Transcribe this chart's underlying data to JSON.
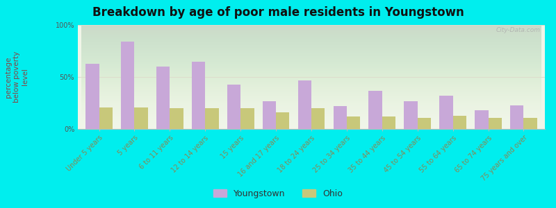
{
  "title": "Breakdown by age of poor male residents in Youngstown",
  "ylabel_lines": [
    "percentage",
    "below poverty",
    "level"
  ],
  "categories": [
    "Under 5 years",
    "5 years",
    "6 to 11 years",
    "12 to 14 years",
    "15 years",
    "16 and 17 years",
    "18 to 24 years",
    "25 to 34 years",
    "35 to 44 years",
    "45 to 54 years",
    "55 to 64 years",
    "65 to 74 years",
    "75 years and over"
  ],
  "youngstown_values": [
    63,
    84,
    60,
    65,
    43,
    27,
    47,
    22,
    37,
    27,
    32,
    18,
    23
  ],
  "ohio_values": [
    21,
    21,
    20,
    20,
    20,
    16,
    20,
    12,
    12,
    11,
    13,
    11,
    11
  ],
  "youngstown_color": "#c8a8d8",
  "ohio_color": "#c8c87a",
  "background_color": "#00eeee",
  "plot_bg_color": "#f0f5e8",
  "title_fontsize": 12,
  "ylabel_fontsize": 7.5,
  "tick_fontsize": 7,
  "legend_fontsize": 9,
  "ylim": [
    0,
    100
  ],
  "yticks": [
    0,
    50,
    100
  ],
  "ytick_labels": [
    "0%",
    "50%",
    "100%"
  ],
  "legend_youngstown": "Youngstown",
  "legend_ohio": "Ohio",
  "watermark": "City-Data.com",
  "bar_width": 0.38
}
